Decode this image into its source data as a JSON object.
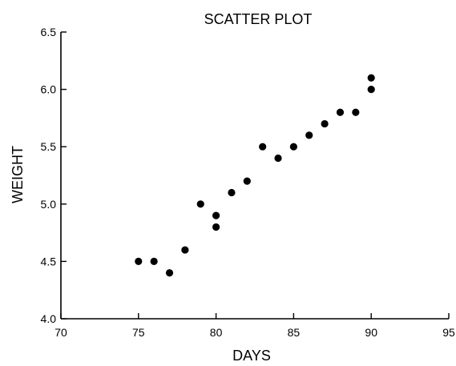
{
  "chart_data": {
    "type": "scatter",
    "title": "SCATTER PLOT",
    "xlabel": "DAYS",
    "ylabel": "WEIGHT",
    "xlim": [
      70,
      95
    ],
    "ylim": [
      4.0,
      6.5
    ],
    "xticks": [
      "70",
      "75",
      "80",
      "85",
      "90",
      "95"
    ],
    "yticks": [
      "4.0",
      "4.5",
      "5.0",
      "5.5",
      "6.0",
      "6.5"
    ],
    "grid": false,
    "legend": "none",
    "point_color": "#000000",
    "points": [
      {
        "x": 75,
        "y": 4.5
      },
      {
        "x": 76,
        "y": 4.5
      },
      {
        "x": 77,
        "y": 4.4
      },
      {
        "x": 78,
        "y": 4.6
      },
      {
        "x": 79,
        "y": 5.0
      },
      {
        "x": 80,
        "y": 4.9
      },
      {
        "x": 80,
        "y": 4.8
      },
      {
        "x": 81,
        "y": 5.1
      },
      {
        "x": 82,
        "y": 5.2
      },
      {
        "x": 83,
        "y": 5.5
      },
      {
        "x": 84,
        "y": 5.4
      },
      {
        "x": 85,
        "y": 5.5
      },
      {
        "x": 86,
        "y": 5.6
      },
      {
        "x": 87,
        "y": 5.7
      },
      {
        "x": 88,
        "y": 5.8
      },
      {
        "x": 89,
        "y": 5.8
      },
      {
        "x": 90,
        "y": 6.1
      },
      {
        "x": 90,
        "y": 6.0
      }
    ]
  }
}
